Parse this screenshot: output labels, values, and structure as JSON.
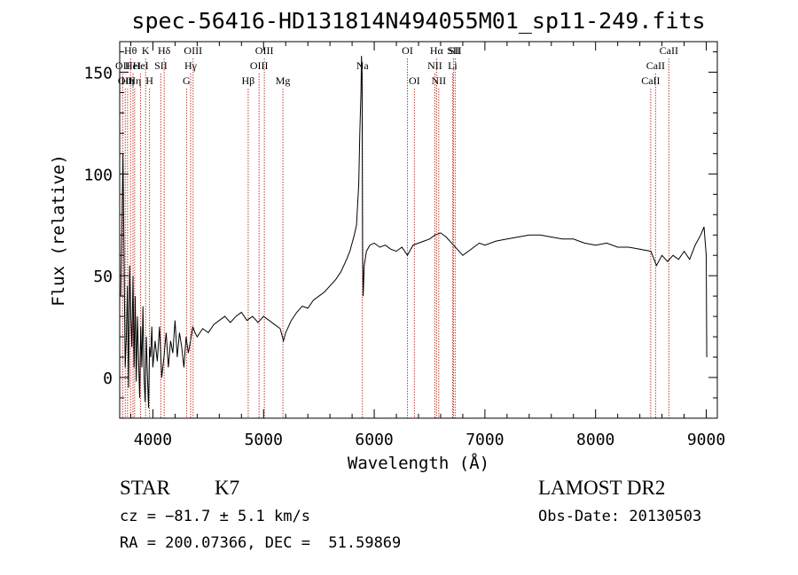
{
  "chart_data": {
    "type": "line",
    "title": "spec-56416-HD131814N494055M01_sp11-249.fits",
    "xlabel": "Wavelength (Å)",
    "ylabel": "Flux (relative)",
    "xlim": [
      3700,
      9100
    ],
    "ylim": [
      -20,
      165
    ],
    "x_ticks": [
      4000,
      5000,
      6000,
      7000,
      8000,
      9000
    ],
    "x_tick_labels": [
      "4000",
      "5000",
      "6000",
      "7000",
      "8000",
      "9000"
    ],
    "y_ticks": [
      0,
      50,
      100,
      150
    ],
    "y_tick_labels": [
      "0",
      "50",
      "100",
      "150"
    ],
    "grid": false,
    "series": [
      {
        "color": "#000000",
        "points": [
          [
            3710,
            40
          ],
          [
            3720,
            75
          ],
          [
            3730,
            110
          ],
          [
            3740,
            55
          ],
          [
            3750,
            5
          ],
          [
            3760,
            20
          ],
          [
            3770,
            45
          ],
          [
            3780,
            -5
          ],
          [
            3790,
            55
          ],
          [
            3800,
            30
          ],
          [
            3810,
            15
          ],
          [
            3820,
            50
          ],
          [
            3830,
            5
          ],
          [
            3840,
            40
          ],
          [
            3850,
            -2
          ],
          [
            3860,
            30
          ],
          [
            3870,
            10
          ],
          [
            3880,
            -10
          ],
          [
            3890,
            25
          ],
          [
            3900,
            5
          ],
          [
            3910,
            35
          ],
          [
            3920,
            0
          ],
          [
            3930,
            -12
          ],
          [
            3940,
            20
          ],
          [
            3950,
            2
          ],
          [
            3960,
            -15
          ],
          [
            3970,
            15
          ],
          [
            3980,
            10
          ],
          [
            3990,
            25
          ],
          [
            4000,
            5
          ],
          [
            4020,
            18
          ],
          [
            4040,
            8
          ],
          [
            4060,
            25
          ],
          [
            4080,
            0
          ],
          [
            4100,
            10
          ],
          [
            4120,
            22
          ],
          [
            4140,
            5
          ],
          [
            4160,
            18
          ],
          [
            4180,
            12
          ],
          [
            4200,
            28
          ],
          [
            4220,
            10
          ],
          [
            4240,
            22
          ],
          [
            4260,
            15
          ],
          [
            4280,
            5
          ],
          [
            4300,
            20
          ],
          [
            4320,
            12
          ],
          [
            4340,
            18
          ],
          [
            4360,
            25
          ],
          [
            4380,
            22
          ],
          [
            4400,
            20
          ],
          [
            4450,
            24
          ],
          [
            4500,
            22
          ],
          [
            4550,
            26
          ],
          [
            4600,
            28
          ],
          [
            4650,
            30
          ],
          [
            4700,
            27
          ],
          [
            4750,
            30
          ],
          [
            4800,
            32
          ],
          [
            4850,
            28
          ],
          [
            4900,
            30
          ],
          [
            4950,
            27
          ],
          [
            5000,
            30
          ],
          [
            5050,
            28
          ],
          [
            5100,
            26
          ],
          [
            5150,
            24
          ],
          [
            5180,
            18
          ],
          [
            5200,
            22
          ],
          [
            5250,
            28
          ],
          [
            5300,
            32
          ],
          [
            5350,
            35
          ],
          [
            5400,
            34
          ],
          [
            5450,
            38
          ],
          [
            5500,
            40
          ],
          [
            5550,
            42
          ],
          [
            5600,
            45
          ],
          [
            5650,
            48
          ],
          [
            5700,
            52
          ],
          [
            5750,
            58
          ],
          [
            5780,
            62
          ],
          [
            5800,
            66
          ],
          [
            5820,
            70
          ],
          [
            5840,
            75
          ],
          [
            5860,
            95
          ],
          [
            5870,
            120
          ],
          [
            5880,
            140
          ],
          [
            5885,
            158
          ],
          [
            5890,
            150
          ],
          [
            5895,
            60
          ],
          [
            5900,
            40
          ],
          [
            5910,
            55
          ],
          [
            5930,
            62
          ],
          [
            5960,
            65
          ],
          [
            6000,
            66
          ],
          [
            6050,
            64
          ],
          [
            6100,
            65
          ],
          [
            6150,
            63
          ],
          [
            6200,
            62
          ],
          [
            6250,
            64
          ],
          [
            6300,
            60
          ],
          [
            6350,
            65
          ],
          [
            6400,
            66
          ],
          [
            6450,
            67
          ],
          [
            6500,
            68
          ],
          [
            6550,
            70
          ],
          [
            6600,
            71
          ],
          [
            6650,
            69
          ],
          [
            6700,
            66
          ],
          [
            6750,
            63
          ],
          [
            6800,
            60
          ],
          [
            6850,
            62
          ],
          [
            6900,
            64
          ],
          [
            6950,
            66
          ],
          [
            7000,
            65
          ],
          [
            7100,
            67
          ],
          [
            7200,
            68
          ],
          [
            7300,
            69
          ],
          [
            7400,
            70
          ],
          [
            7500,
            70
          ],
          [
            7600,
            69
          ],
          [
            7700,
            68
          ],
          [
            7800,
            68
          ],
          [
            7900,
            66
          ],
          [
            8000,
            65
          ],
          [
            8100,
            66
          ],
          [
            8200,
            64
          ],
          [
            8300,
            64
          ],
          [
            8400,
            63
          ],
          [
            8500,
            62
          ],
          [
            8550,
            55
          ],
          [
            8600,
            60
          ],
          [
            8650,
            57
          ],
          [
            8700,
            60
          ],
          [
            8750,
            58
          ],
          [
            8800,
            62
          ],
          [
            8850,
            58
          ],
          [
            8900,
            65
          ],
          [
            8950,
            70
          ],
          [
            8980,
            74
          ],
          [
            9000,
            60
          ],
          [
            9005,
            10
          ]
        ]
      }
    ],
    "lines": [
      {
        "wavelength": 3727,
        "label": "OII",
        "row": 2
      },
      {
        "wavelength": 3750,
        "label": "OII",
        "row": 3
      },
      {
        "wavelength": 3771,
        "label": "Hη",
        "row": 3
      },
      {
        "wavelength": 3798,
        "label": "Hθ",
        "row": 1
      },
      {
        "wavelength": 3820,
        "label": "HeI",
        "row": 2
      },
      {
        "wavelength": 3835,
        "label": "Hη",
        "row": 3
      },
      {
        "wavelength": 3889,
        "label": "HeI",
        "row": 2
      },
      {
        "wavelength": 3934,
        "label": "K",
        "row": 1
      },
      {
        "wavelength": 3969,
        "label": "H",
        "row": 3
      },
      {
        "wavelength": 4072,
        "label": "SII",
        "row": 2
      },
      {
        "wavelength": 4102,
        "label": "Hδ",
        "row": 1
      },
      {
        "wavelength": 4304,
        "label": "G",
        "row": 3
      },
      {
        "wavelength": 4341,
        "label": "Hγ",
        "row": 2
      },
      {
        "wavelength": 4363,
        "label": "OIII",
        "row": 1
      },
      {
        "wavelength": 4861,
        "label": "Hβ",
        "row": 3
      },
      {
        "wavelength": 4959,
        "label": "OIII",
        "row": 2
      },
      {
        "wavelength": 5007,
        "label": "OIII",
        "row": 1
      },
      {
        "wavelength": 5175,
        "label": "Mg",
        "row": 3
      },
      {
        "wavelength": 5893,
        "label": "Na",
        "row": 2
      },
      {
        "wavelength": 6300,
        "label": "OI",
        "row": 1
      },
      {
        "wavelength": 6363,
        "label": "OI",
        "row": 3
      },
      {
        "wavelength": 6548,
        "label": "NII",
        "row": 2
      },
      {
        "wavelength": 6563,
        "label": "Hα",
        "row": 1
      },
      {
        "wavelength": 6583,
        "label": "NII",
        "row": 3
      },
      {
        "wavelength": 6708,
        "label": "Li",
        "row": 2
      },
      {
        "wavelength": 6716,
        "label": "SII",
        "row": 1
      },
      {
        "wavelength": 6731,
        "label": "SII",
        "row": 1
      },
      {
        "wavelength": 8498,
        "label": "CaII",
        "row": 3
      },
      {
        "wavelength": 8542,
        "label": "CaII",
        "row": 2
      },
      {
        "wavelength": 8662,
        "label": "CaII",
        "row": 1
      }
    ]
  },
  "info": {
    "object_class": "STAR",
    "subclass": "K7",
    "survey": "LAMOST DR2",
    "redshift": "cz = −81.7 ± 5.1 km/s",
    "obs_date": "Obs-Date: 20130503",
    "coords": "RA = 200.07366, DEC =  51.59869"
  },
  "colors": {
    "line_marker": "#c0392b",
    "spectrum": "#000000",
    "axes": "#000000"
  }
}
